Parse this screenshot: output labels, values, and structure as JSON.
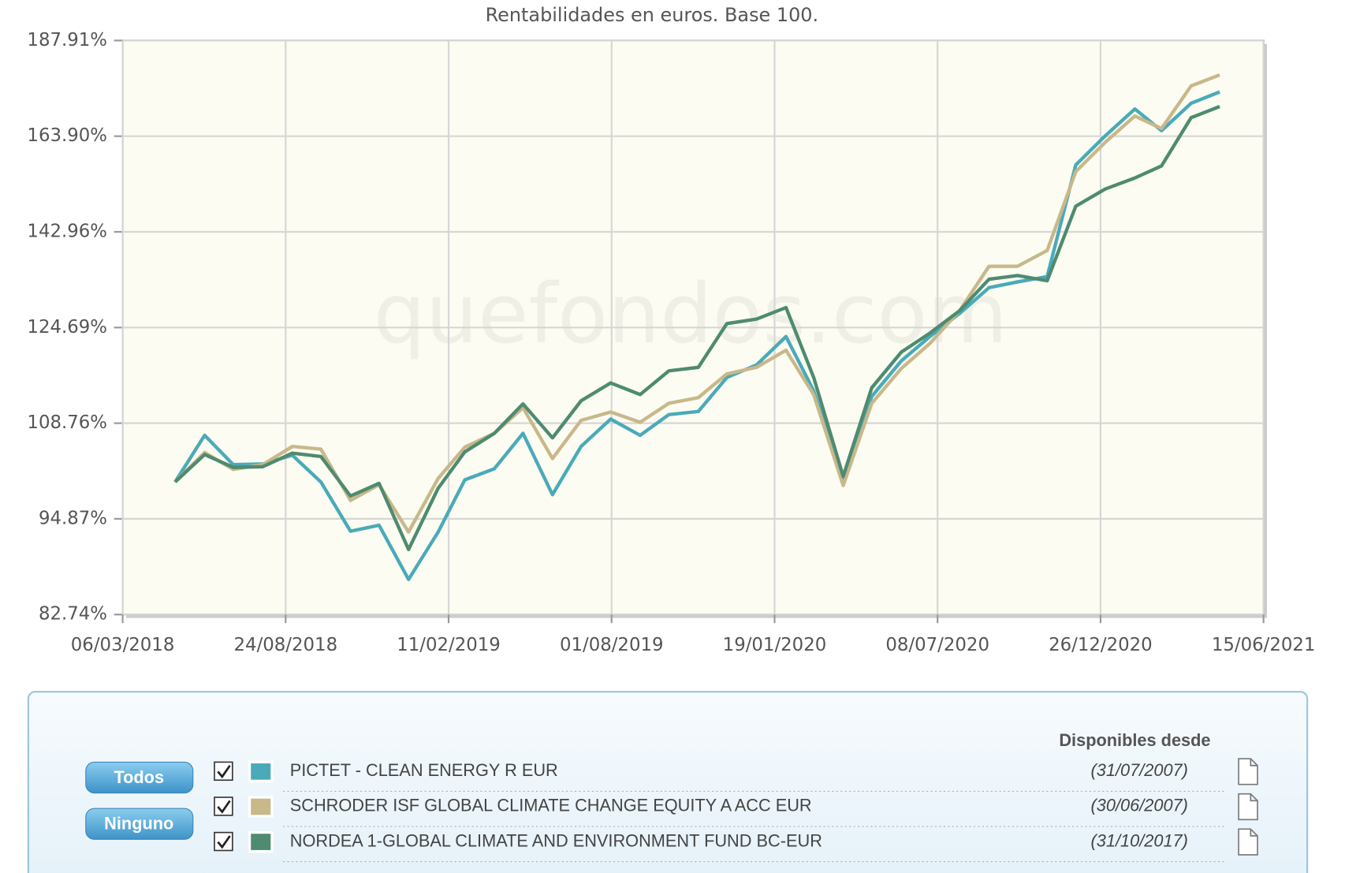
{
  "chart_data": {
    "type": "line",
    "title": "Rentabilidades en euros. Base 100.",
    "watermark": "quefondos.com",
    "x": [
      "30/04/2018",
      "31/05/2018",
      "30/06/2018",
      "31/07/2018",
      "31/08/2018",
      "30/09/2018",
      "31/10/2018",
      "30/11/2018",
      "31/12/2018",
      "31/01/2019",
      "28/02/2019",
      "31/03/2019",
      "30/04/2019",
      "31/05/2019",
      "30/06/2019",
      "31/07/2019",
      "31/08/2019",
      "30/09/2019",
      "31/10/2019",
      "30/11/2019",
      "31/12/2019",
      "31/01/2020",
      "29/02/2020",
      "31/03/2020",
      "30/04/2020",
      "31/05/2020",
      "30/06/2020",
      "31/07/2020",
      "31/08/2020",
      "30/09/2020",
      "31/10/2020",
      "30/11/2020",
      "31/12/2020",
      "31/01/2021",
      "28/02/2021",
      "31/03/2021",
      "30/04/2021"
    ],
    "series": [
      {
        "name": "PICTET - CLEAN ENERGY R EUR",
        "color": "#4aaab9",
        "values": [
          100,
          106.9,
          102.5,
          102.6,
          103.9,
          100,
          93.2,
          94.0,
          87.0,
          93.1,
          100.3,
          101.9,
          107.2,
          98.2,
          105.2,
          109.4,
          106.9,
          110.1,
          110.6,
          116.1,
          118.2,
          123.1,
          113.9,
          100,
          113.0,
          118.9,
          123.1,
          127.2,
          132.0,
          133.1,
          134.1,
          157.3,
          164.0,
          170.4,
          165.2,
          171.8,
          174.6
        ]
      },
      {
        "name": "SCHRODER ISF GLOBAL CLIMATE CHANGE EQUITY A ACC EUR",
        "color": "#c8b88a",
        "values": [
          100,
          104.3,
          101.8,
          102.5,
          105.2,
          104.8,
          97.4,
          99.6,
          93.1,
          100.5,
          105.1,
          107.2,
          111.2,
          103.4,
          109.2,
          110.5,
          108.9,
          111.9,
          112.8,
          116.7,
          117.8,
          120.7,
          113.3,
          99.5,
          111.9,
          117.6,
          121.9,
          127.7,
          136.1,
          136.1,
          139.2,
          155.8,
          162.5,
          168.7,
          165.7,
          176.1,
          178.9
        ]
      },
      {
        "name": "NORDEA 1-GLOBAL CLIMATE AND ENVIRONMENT FUND BC-EUR",
        "color": "#4e8b70",
        "values": [
          100,
          104.0,
          102.1,
          102.2,
          104.2,
          103.7,
          98.0,
          99.8,
          90.8,
          99.1,
          104.4,
          107.2,
          111.8,
          106.5,
          112.3,
          115.2,
          113.3,
          117.2,
          117.8,
          125.4,
          126.2,
          128.3,
          116.1,
          100.8,
          114.4,
          120.4,
          123.7,
          127.7,
          133.6,
          134.3,
          133.3,
          148.3,
          152.0,
          154.4,
          157.1,
          168.3,
          171.0
        ]
      }
    ],
    "xlim": [
      "06/03/2018",
      "15/06/2021"
    ],
    "xticks": [
      "06/03/2018",
      "24/08/2018",
      "11/02/2019",
      "01/08/2019",
      "19/01/2020",
      "08/07/2020",
      "26/12/2020",
      "15/06/2021"
    ],
    "ylim": [
      82.74,
      187.91
    ],
    "yticks": [
      {
        "value": 82.74,
        "label": "82.74%"
      },
      {
        "value": 94.87,
        "label": "94.87%"
      },
      {
        "value": 108.76,
        "label": "108.76%"
      },
      {
        "value": 124.69,
        "label": "124.69%"
      },
      {
        "value": 142.96,
        "label": "142.96%"
      },
      {
        "value": 163.9,
        "label": "163.90%"
      },
      {
        "value": 187.91,
        "label": "187.91%"
      }
    ],
    "log_scale": true,
    "grid": true
  },
  "legend_panel": {
    "header": "Disponibles desde",
    "buttons": [
      "Todos",
      "Ninguno"
    ],
    "since": [
      "(31/07/2007)",
      "(30/06/2007)",
      "(31/10/2017)"
    ]
  }
}
